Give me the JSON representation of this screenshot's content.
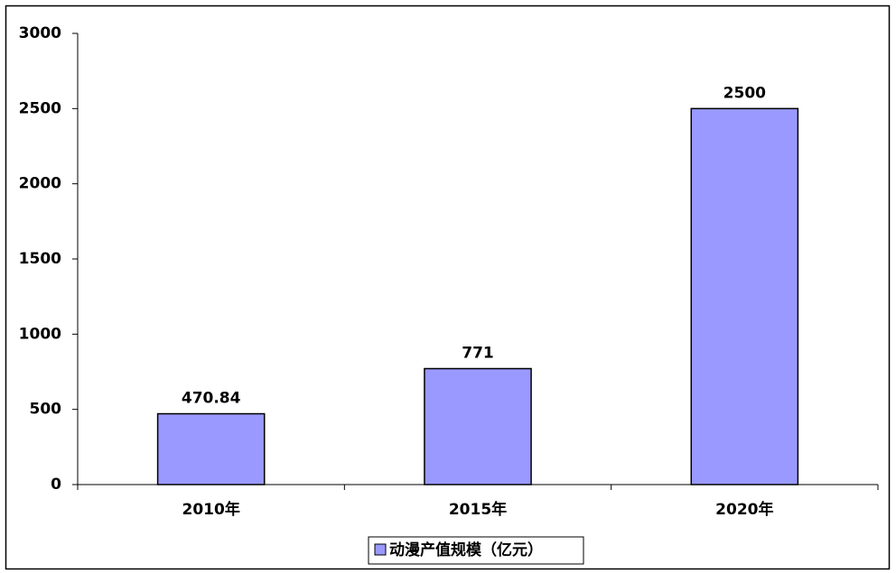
{
  "chart_data": {
    "type": "bar",
    "categories": [
      "2010年",
      "2015年",
      "2020年"
    ],
    "series": [
      {
        "name": "动漫产值规模（亿元）",
        "color": "#9999ff",
        "values": [
          470.84,
          771,
          2500
        ]
      }
    ],
    "ylim": [
      0,
      3000
    ],
    "yticks": [
      0,
      500,
      1000,
      1500,
      2000,
      2500,
      3000
    ],
    "grid": false,
    "legend": "bottom"
  }
}
